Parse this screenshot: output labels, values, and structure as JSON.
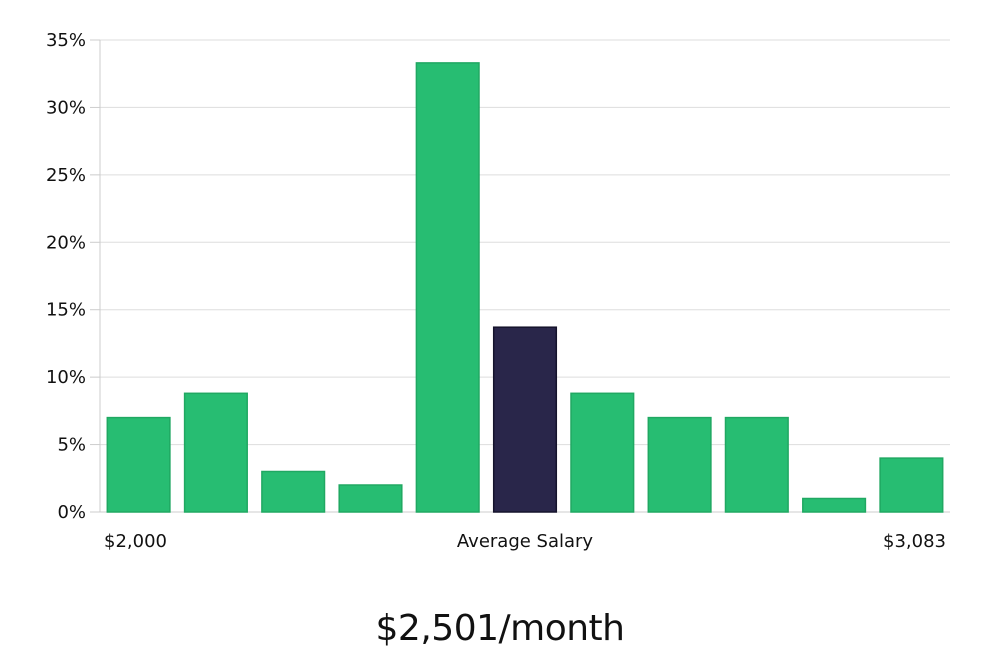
{
  "chart_data": {
    "type": "bar",
    "values": [
      7,
      8.8,
      3,
      2,
      33.3,
      13.7,
      8.8,
      7,
      7,
      1,
      4
    ],
    "highlight_index": 5,
    "ylim": [
      0,
      35
    ],
    "yticks": [
      "0%",
      "5%",
      "10%",
      "15%",
      "20%",
      "25%",
      "30%",
      "35%"
    ],
    "ytick_values": [
      0,
      5,
      10,
      15,
      20,
      25,
      30,
      35
    ],
    "x_left_label": "$2,000",
    "x_center_label": "Average Salary",
    "x_right_label": "$3,083",
    "grid": true,
    "colors": {
      "bar": "#27bd72",
      "bar_edge": "#20a862",
      "highlight": "#29264a",
      "highlight_edge": "#15132c"
    }
  },
  "salary_caption": "$2,501/month"
}
